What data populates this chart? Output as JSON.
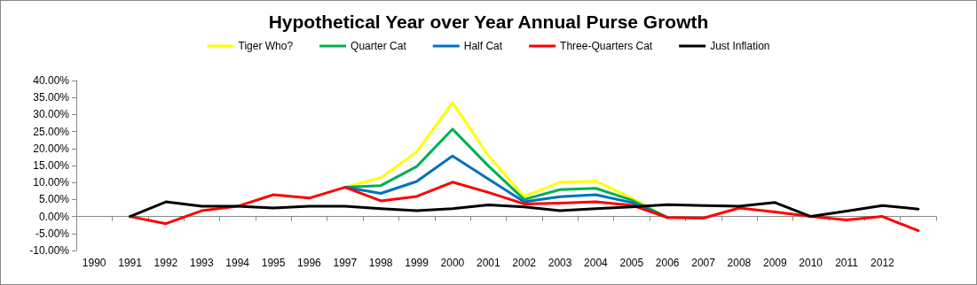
{
  "chart_data": {
    "type": "line",
    "title": "Hypothetical Year over Year Annual Purse Growth",
    "categories": [
      "1990",
      "1991",
      "1992",
      "1993",
      "1994",
      "1995",
      "1996",
      "1997",
      "1998",
      "1999",
      "2000",
      "2001",
      "2002",
      "2003",
      "2004",
      "2005",
      "2006",
      "2007",
      "2008",
      "2009",
      "2010",
      "2011",
      "2012",
      null
    ],
    "series": [
      {
        "name": "Tiger Who?",
        "color": "#ffff00",
        "values": [
          null,
          null,
          null,
          null,
          null,
          null,
          null,
          8.6,
          11.4,
          19.0,
          33.5,
          17.9,
          5.9,
          10.1,
          10.4,
          5.4,
          -0.3,
          null,
          null,
          null,
          null,
          null,
          null,
          null
        ]
      },
      {
        "name": "Quarter Cat",
        "color": "#00b050",
        "values": [
          null,
          null,
          null,
          null,
          null,
          null,
          null,
          8.6,
          9.1,
          14.7,
          25.7,
          14.9,
          5.0,
          7.9,
          8.3,
          4.8,
          -0.3,
          null,
          null,
          null,
          null,
          null,
          null,
          null
        ]
      },
      {
        "name": "Half Cat",
        "color": "#0070c0",
        "values": [
          null,
          null,
          null,
          null,
          null,
          null,
          null,
          8.6,
          6.8,
          10.3,
          17.8,
          11.0,
          4.3,
          5.8,
          6.4,
          4.1,
          -0.3,
          null,
          null,
          null,
          null,
          null,
          null,
          null
        ]
      },
      {
        "name": "Three-Quarters Cat",
        "color": "#ff0000",
        "values": [
          null,
          0,
          -2.1,
          1.7,
          3.0,
          6.4,
          5.4,
          8.6,
          4.6,
          5.9,
          10.1,
          7.1,
          3.7,
          3.9,
          4.3,
          3.3,
          -0.3,
          -0.5,
          2.5,
          1.3,
          0,
          -1.0,
          0,
          -4.2
        ]
      },
      {
        "name": "Just Inflation",
        "color": "#000000",
        "values": [
          null,
          0,
          4.3,
          3.0,
          3.0,
          2.5,
          3.0,
          3.0,
          2.3,
          1.7,
          2.3,
          3.4,
          2.8,
          1.7,
          2.3,
          2.8,
          3.5,
          3.2,
          3.0,
          4.1,
          0,
          1.6,
          3.2,
          2.2
        ]
      }
    ],
    "ylim": [
      -10,
      40
    ],
    "yticks": [
      {
        "value": -10,
        "label": "-10.00%"
      },
      {
        "value": -5,
        "label": "-5.00%"
      },
      {
        "value": 0,
        "label": "0.00%"
      },
      {
        "value": 5,
        "label": "5.00%"
      },
      {
        "value": 10,
        "label": "10.00%"
      },
      {
        "value": 15,
        "label": "15.00%"
      },
      {
        "value": 20,
        "label": "20.00%"
      },
      {
        "value": 25,
        "label": "25.00%"
      },
      {
        "value": 30,
        "label": "30.00%"
      },
      {
        "value": 35,
        "label": "35.00%"
      },
      {
        "value": 40,
        "label": "40.00%"
      }
    ],
    "legend": "top",
    "marker": "none",
    "line_style": "solid"
  }
}
